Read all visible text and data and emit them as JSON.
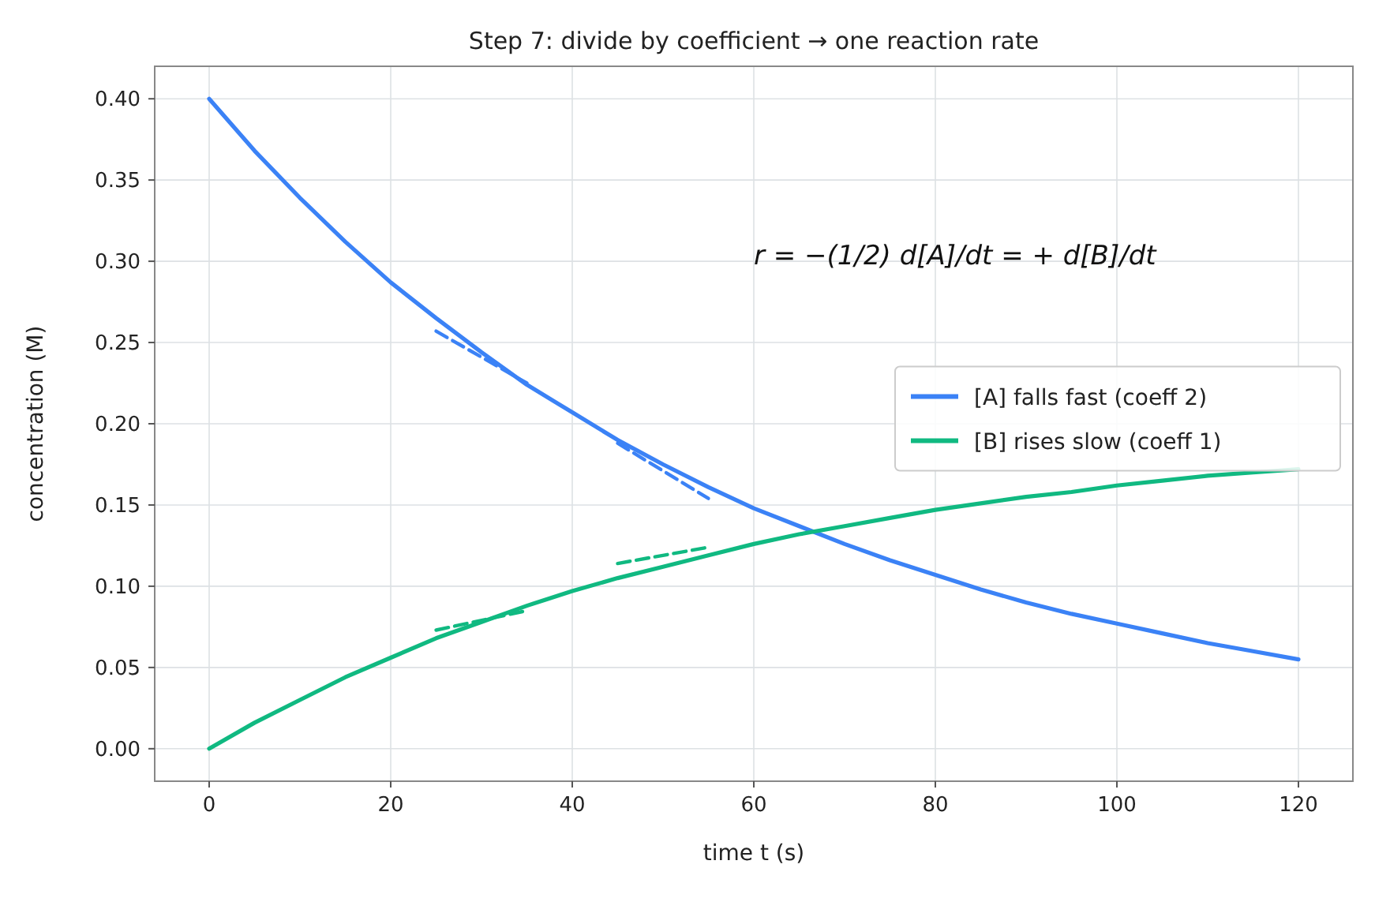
{
  "chart_data": {
    "type": "line",
    "title": "Step 7: divide by coefficient → one reaction rate",
    "xlabel": "time  t  (s)",
    "ylabel": "concentration  (M)",
    "x": [
      0,
      5,
      10,
      15,
      20,
      25,
      30,
      35,
      40,
      45,
      50,
      55,
      60,
      65,
      70,
      75,
      80,
      85,
      90,
      95,
      100,
      105,
      110,
      115,
      120
    ],
    "series": [
      {
        "name": "[A] falls fast (coeff 2)",
        "color": "#3b82f6",
        "values": [
          0.4,
          0.368,
          0.339,
          0.312,
          0.287,
          0.265,
          0.244,
          0.224,
          0.207,
          0.19,
          0.175,
          0.161,
          0.148,
          0.137,
          0.126,
          0.116,
          0.107,
          0.098,
          0.09,
          0.083,
          0.077,
          0.071,
          0.065,
          0.06,
          0.055
        ]
      },
      {
        "name": "[B] rises slow (coeff 1)",
        "color": "#10b981",
        "values": [
          0,
          0.016,
          0.03,
          0.044,
          0.056,
          0.068,
          0.078,
          0.088,
          0.097,
          0.105,
          0.112,
          0.119,
          0.126,
          0.132,
          0.137,
          0.142,
          0.147,
          0.151,
          0.155,
          0.158,
          0.162,
          0.165,
          0.168,
          0.17,
          0.172
        ]
      },
      {
        "color": "#3b82f6",
        "line_style": "dashed",
        "x": [
          25,
          35
        ],
        "values": [
          0.257,
          0.225
        ]
      },
      {
        "color": "#3b82f6",
        "line_style": "dashed",
        "x": [
          45,
          55
        ],
        "values": [
          0.188,
          0.154
        ]
      },
      {
        "color": "#10b981",
        "line_style": "dashed",
        "x": [
          25,
          35
        ],
        "values": [
          0.073,
          0.085
        ]
      },
      {
        "color": "#10b981",
        "line_style": "dashed",
        "x": [
          45,
          55
        ],
        "values": [
          0.114,
          0.124
        ]
      }
    ],
    "annotations": [
      "r = −(1/2) d[A]/dt = + d[B]/dt"
    ],
    "xlim": [
      -6,
      126
    ],
    "xticks": [
      0,
      20,
      40,
      60,
      80,
      100,
      120
    ],
    "ylim": [
      -0.02,
      0.42
    ],
    "yticks": [
      {
        "value": 0,
        "label": "0.00"
      },
      {
        "value": 0.05,
        "label": "0.05"
      },
      {
        "value": 0.1,
        "label": "0.10"
      },
      {
        "value": 0.15,
        "label": "0.15"
      },
      {
        "value": 0.2,
        "label": "0.20"
      },
      {
        "value": 0.25,
        "label": "0.25"
      },
      {
        "value": 0.3,
        "label": "0.30"
      },
      {
        "value": 0.35,
        "label": "0.35"
      },
      {
        "value": 0.4,
        "label": "0.40"
      }
    ],
    "grid": true,
    "legend": "right",
    "line_style": "solid",
    "marker": "none"
  }
}
